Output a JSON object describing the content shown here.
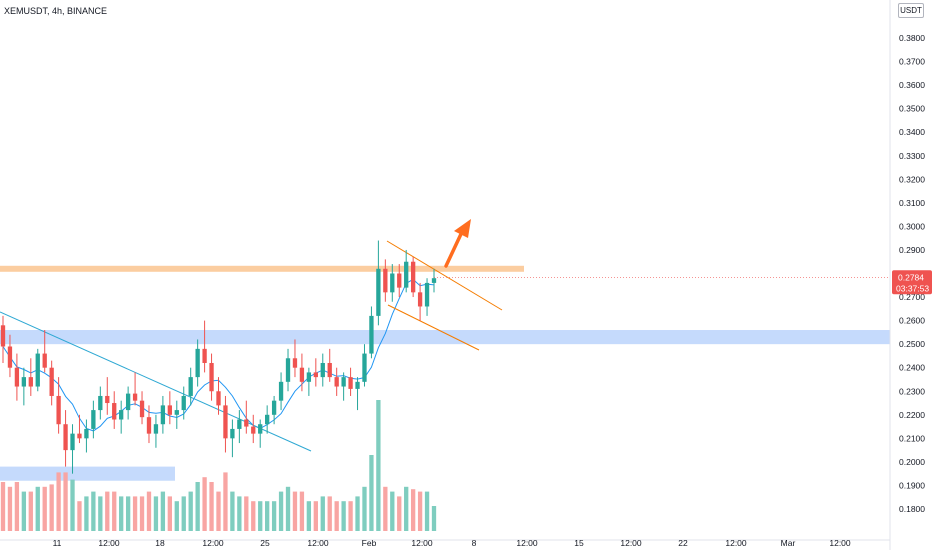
{
  "header": {
    "symbol": "XEMUSDT, 4h, BINANCE"
  },
  "axis": {
    "unit": "USDT"
  },
  "price_tag": {
    "value": "0.2784",
    "countdown": "03:37:53"
  },
  "colors": {
    "up": "#26a69a",
    "down": "#ef5350",
    "up_vol": "#7fcdbf",
    "down_vol": "#f8a5a3",
    "zone": "#bbd3fb",
    "resistance": "#fbc896",
    "channel": "#f57c00",
    "trend": "#2ea8d3",
    "ma": "#2196f3",
    "arrow": "#ff6d1f",
    "tag_bg": "#ef5350"
  },
  "chart_data": {
    "type": "candlestick",
    "symbol": "XEMUSDT",
    "interval": "4h",
    "exchange": "BINANCE",
    "ylim": [
      0.175,
      0.395
    ],
    "yticks": [
      "0.3800",
      "0.3700",
      "0.3600",
      "0.3500",
      "0.3400",
      "0.3300",
      "0.3200",
      "0.3100",
      "0.3000",
      "0.2900",
      "0.2800",
      "0.2700",
      "0.2600",
      "0.2500",
      "0.2400",
      "0.2300",
      "0.2200",
      "0.2100",
      "0.2000",
      "0.1900",
      "0.1800"
    ],
    "xticks": [
      "11",
      "12:00",
      "18",
      "12:00",
      "25",
      "12:00",
      "Feb",
      "12:00",
      "8",
      "12:00",
      "15",
      "12:00",
      "22",
      "12:00",
      "Mar",
      "12:00"
    ],
    "current_price": 0.2784,
    "support_zones": [
      [
        0.25,
        0.256
      ],
      [
        0.192,
        0.198
      ]
    ],
    "resistance_level": 0.282,
    "candles_ohlc": [
      [
        0.258,
        0.262,
        0.242,
        0.249
      ],
      [
        0.249,
        0.254,
        0.236,
        0.24
      ],
      [
        0.24,
        0.246,
        0.226,
        0.232
      ],
      [
        0.232,
        0.24,
        0.224,
        0.236
      ],
      [
        0.236,
        0.244,
        0.228,
        0.232
      ],
      [
        0.232,
        0.248,
        0.23,
        0.246
      ],
      [
        0.246,
        0.256,
        0.238,
        0.24
      ],
      [
        0.24,
        0.243,
        0.224,
        0.228
      ],
      [
        0.228,
        0.236,
        0.212,
        0.216
      ],
      [
        0.216,
        0.222,
        0.198,
        0.205
      ],
      [
        0.205,
        0.216,
        0.195,
        0.212
      ],
      [
        0.212,
        0.22,
        0.208,
        0.21
      ],
      [
        0.21,
        0.218,
        0.204,
        0.214
      ],
      [
        0.214,
        0.226,
        0.21,
        0.222
      ],
      [
        0.222,
        0.232,
        0.218,
        0.228
      ],
      [
        0.228,
        0.236,
        0.22,
        0.225
      ],
      [
        0.225,
        0.23,
        0.214,
        0.218
      ],
      [
        0.218,
        0.226,
        0.212,
        0.222
      ],
      [
        0.222,
        0.232,
        0.218,
        0.229
      ],
      [
        0.229,
        0.238,
        0.224,
        0.226
      ],
      [
        0.226,
        0.23,
        0.216,
        0.219
      ],
      [
        0.219,
        0.224,
        0.208,
        0.212
      ],
      [
        0.212,
        0.22,
        0.206,
        0.216
      ],
      [
        0.216,
        0.228,
        0.212,
        0.224
      ],
      [
        0.224,
        0.23,
        0.216,
        0.22
      ],
      [
        0.22,
        0.226,
        0.214,
        0.222
      ],
      [
        0.222,
        0.232,
        0.218,
        0.228
      ],
      [
        0.228,
        0.24,
        0.224,
        0.236
      ],
      [
        0.236,
        0.252,
        0.232,
        0.248
      ],
      [
        0.248,
        0.26,
        0.238,
        0.242
      ],
      [
        0.242,
        0.246,
        0.226,
        0.23
      ],
      [
        0.23,
        0.236,
        0.22,
        0.224
      ],
      [
        0.224,
        0.228,
        0.204,
        0.21
      ],
      [
        0.21,
        0.218,
        0.202,
        0.214
      ],
      [
        0.214,
        0.222,
        0.208,
        0.218
      ],
      [
        0.218,
        0.226,
        0.212,
        0.215
      ],
      [
        0.215,
        0.22,
        0.208,
        0.212
      ],
      [
        0.212,
        0.218,
        0.206,
        0.216
      ],
      [
        0.216,
        0.224,
        0.212,
        0.22
      ],
      [
        0.22,
        0.228,
        0.216,
        0.226
      ],
      [
        0.226,
        0.238,
        0.222,
        0.234
      ],
      [
        0.234,
        0.248,
        0.23,
        0.244
      ],
      [
        0.244,
        0.252,
        0.236,
        0.24
      ],
      [
        0.24,
        0.246,
        0.23,
        0.234
      ],
      [
        0.234,
        0.24,
        0.228,
        0.238
      ],
      [
        0.238,
        0.244,
        0.232,
        0.236
      ],
      [
        0.236,
        0.246,
        0.232,
        0.242
      ],
      [
        0.242,
        0.248,
        0.234,
        0.236
      ],
      [
        0.236,
        0.24,
        0.228,
        0.232
      ],
      [
        0.232,
        0.238,
        0.226,
        0.236
      ],
      [
        0.236,
        0.24,
        0.228,
        0.231
      ],
      [
        0.231,
        0.236,
        0.222,
        0.234
      ],
      [
        0.234,
        0.25,
        0.232,
        0.246
      ],
      [
        0.246,
        0.266,
        0.244,
        0.262
      ],
      [
        0.262,
        0.294,
        0.258,
        0.282
      ],
      [
        0.282,
        0.286,
        0.268,
        0.272
      ],
      [
        0.272,
        0.284,
        0.268,
        0.28
      ],
      [
        0.28,
        0.284,
        0.27,
        0.274
      ],
      [
        0.274,
        0.29,
        0.272,
        0.285
      ],
      [
        0.285,
        0.287,
        0.27,
        0.272
      ],
      [
        0.272,
        0.276,
        0.26,
        0.266
      ],
      [
        0.266,
        0.278,
        0.262,
        0.276
      ],
      [
        0.276,
        0.282,
        0.272,
        0.278
      ]
    ]
  }
}
